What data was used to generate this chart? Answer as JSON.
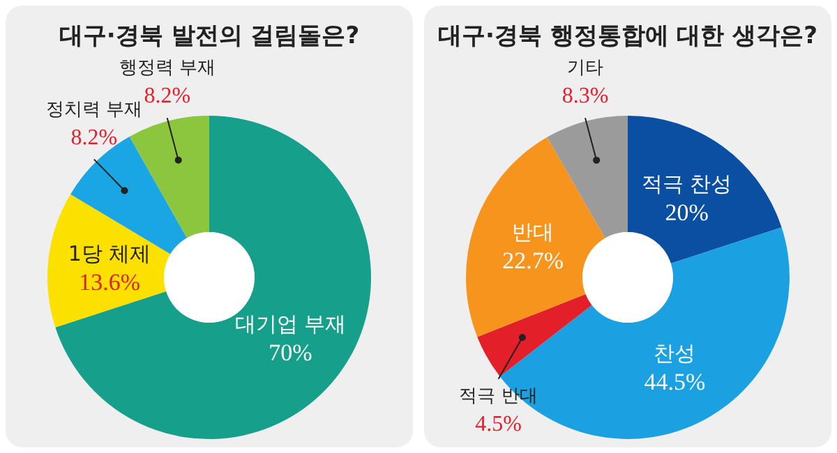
{
  "chart_data": [
    {
      "type": "donut",
      "title": "대구·경북 발전의 걸림돌은?",
      "categories": [
        "대기업 부재",
        "1당 체제",
        "정치력 부재",
        "행정력 부재"
      ],
      "values": [
        70,
        13.6,
        8.2,
        8.2
      ],
      "colors": [
        "#16a08c",
        "#fbe000",
        "#1aa6e4",
        "#8cc63e"
      ],
      "value_labels": [
        "70%",
        "13.6%",
        "8.2%",
        "8.2%"
      ]
    },
    {
      "type": "donut",
      "title": "대구·경북 행정통합에 대한 생각은?",
      "categories": [
        "적극 찬성",
        "찬성",
        "적극 반대",
        "반대",
        "기타"
      ],
      "values": [
        20,
        44.5,
        4.5,
        22.7,
        8.3
      ],
      "colors": [
        "#0b4fa2",
        "#1ba1e2",
        "#e3202a",
        "#f7941e",
        "#9b9b9b"
      ],
      "value_labels": [
        "20%",
        "44.5%",
        "4.5%",
        "22.7%",
        "8.3%"
      ]
    }
  ]
}
